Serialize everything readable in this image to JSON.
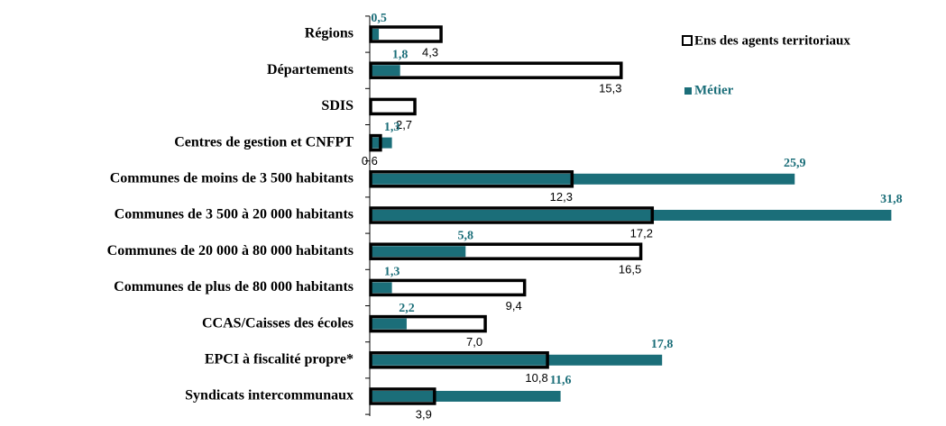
{
  "chart_data": {
    "type": "bar",
    "orientation": "horizontal",
    "categories": [
      "Régions",
      "Départements",
      "SDIS",
      "Centres de gestion et CNFPT",
      "Communes de moins de 3 500 habitants",
      "Communes de 3 500 à 20 000 habitants",
      "Communes de 20 000 à 80 000 habitants",
      "Communes de plus de 80 000 habitants",
      "CCAS/Caisses des écoles",
      "EPCI à fiscalité propre*",
      "Syndicats intercommunaux"
    ],
    "series": [
      {
        "name": "Ens des agents territoriaux",
        "color": "#ffffff",
        "values": [
          4.3,
          15.3,
          2.7,
          0.6,
          12.3,
          17.2,
          16.5,
          9.4,
          7.0,
          10.8,
          3.9
        ],
        "value_labels": [
          "4,3",
          "15,3",
          "2,7",
          "0,6",
          "12,3",
          "17,2",
          "16,5",
          "9,4",
          "7,0",
          "10,8",
          "3,9"
        ]
      },
      {
        "name": "Métier",
        "color": "#1b6e79",
        "values": [
          0.5,
          1.8,
          null,
          1.3,
          25.9,
          31.8,
          5.8,
          1.3,
          2.2,
          17.8,
          11.6
        ],
        "value_labels": [
          "0,5",
          "1,8",
          null,
          "1,3",
          "25,9",
          "31,8",
          "5,8",
          "1,3",
          "2,2",
          "17,8",
          "11,6"
        ]
      }
    ],
    "xlim": [
      0,
      32
    ],
    "legend": "upper right"
  }
}
